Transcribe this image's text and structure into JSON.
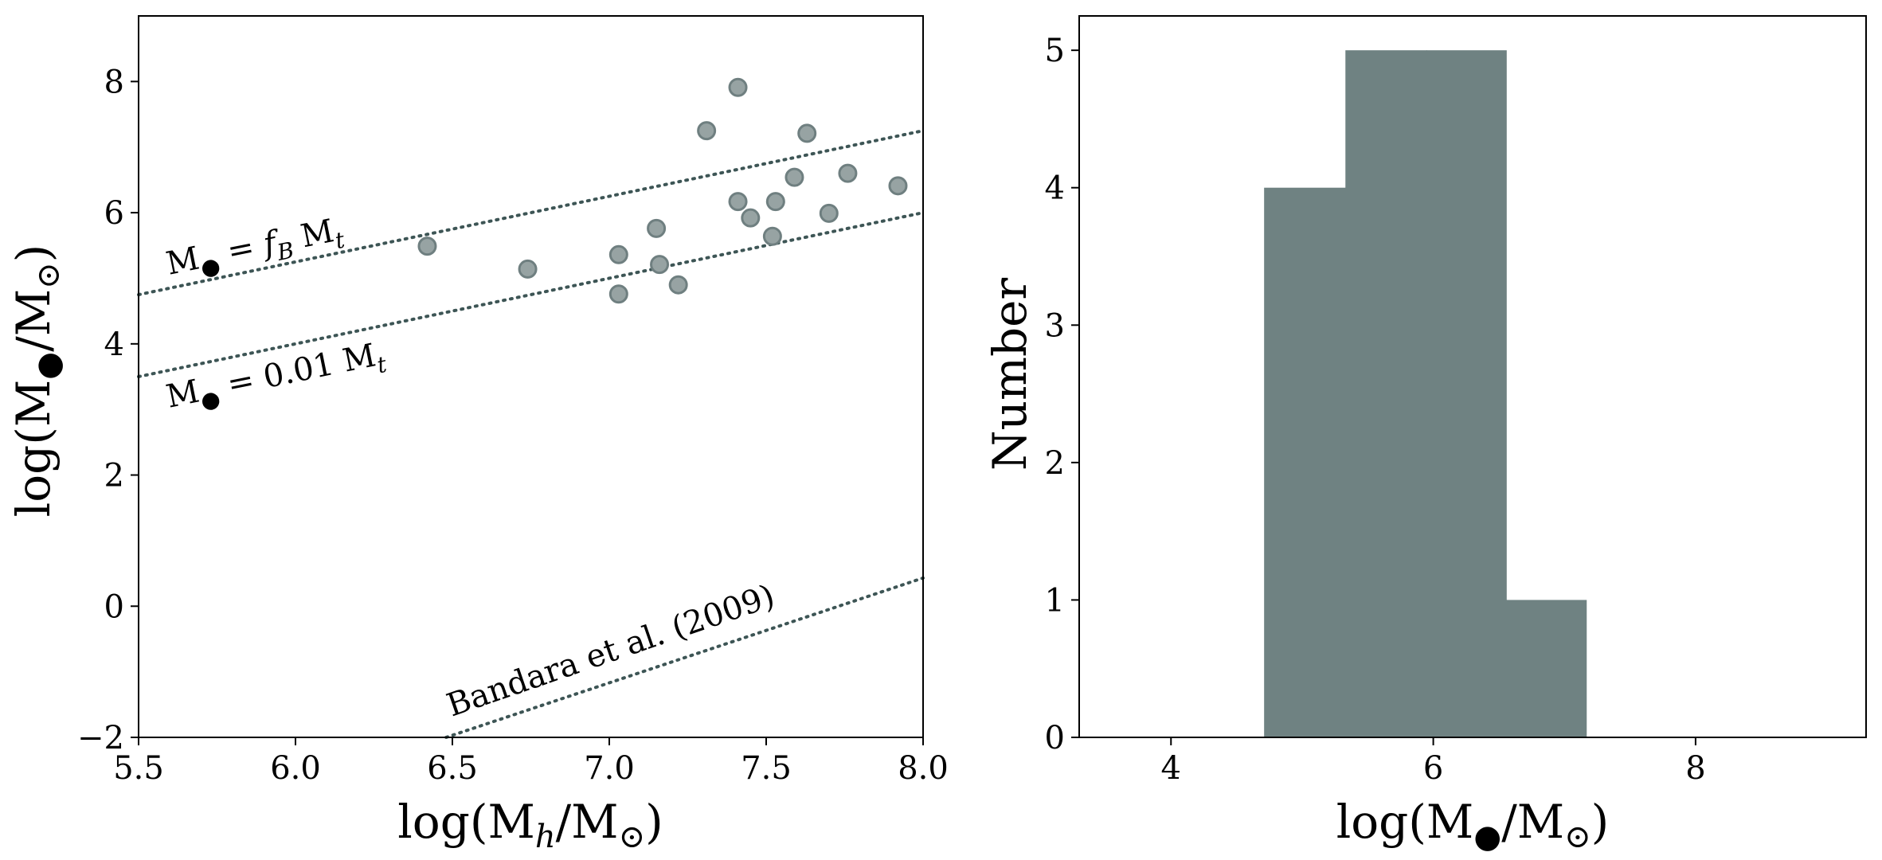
{
  "colors": {
    "marker_fill": "#97a3a3",
    "marker_edge": "#6f7f80",
    "reference_line": "#3d5555",
    "bar_fill": "#6f8282",
    "axes": "#000000"
  },
  "chart_data": [
    {
      "type": "scatter",
      "xlabel": "log(Mh/M⊙)",
      "ylabel": "log(M●/M⊙)",
      "xlim": [
        5.5,
        8.0
      ],
      "ylim": [
        -2,
        9
      ],
      "xticks": [
        5.5,
        6.0,
        6.5,
        7.0,
        7.5,
        8.0
      ],
      "xtick_labels": [
        "5.5",
        "6.0",
        "6.5",
        "7.0",
        "7.5",
        "8.0"
      ],
      "yticks": [
        -2,
        0,
        2,
        4,
        6,
        8
      ],
      "ytick_labels": [
        "−2",
        "0",
        "2",
        "4",
        "6",
        "8"
      ],
      "grid": false,
      "points": [
        {
          "x": 6.42,
          "y": 5.49
        },
        {
          "x": 6.74,
          "y": 5.14
        },
        {
          "x": 7.03,
          "y": 5.36
        },
        {
          "x": 7.03,
          "y": 4.76
        },
        {
          "x": 7.15,
          "y": 5.76
        },
        {
          "x": 7.16,
          "y": 5.21
        },
        {
          "x": 7.22,
          "y": 4.9
        },
        {
          "x": 7.31,
          "y": 7.25
        },
        {
          "x": 7.41,
          "y": 7.91
        },
        {
          "x": 7.41,
          "y": 6.17
        },
        {
          "x": 7.45,
          "y": 5.92
        },
        {
          "x": 7.52,
          "y": 5.64
        },
        {
          "x": 7.53,
          "y": 6.17
        },
        {
          "x": 7.59,
          "y": 6.54
        },
        {
          "x": 7.63,
          "y": 7.21
        },
        {
          "x": 7.7,
          "y": 5.99
        },
        {
          "x": 7.76,
          "y": 6.6
        },
        {
          "x": 7.92,
          "y": 6.41
        }
      ],
      "reference_lines": [
        {
          "label": "M● = fB Mt",
          "x": [
            5.5,
            8.0
          ],
          "y": [
            4.75,
            7.25
          ]
        },
        {
          "label": "M● = 0.01 Mt",
          "x": [
            5.5,
            8.0
          ],
          "y": [
            3.5,
            6.0
          ]
        },
        {
          "label": "Bandara et al. (2009)",
          "x": [
            6.48,
            8.0
          ],
          "y": [
            -2.0,
            0.43
          ]
        }
      ],
      "annotations": {
        "fb_line": {
          "prefix": "M",
          "subscript": "●",
          "mid": " = ",
          "italic": "f",
          "italic_sub": "B",
          "suffix": " M",
          "suffix_sub": "t"
        },
        "pct_line": {
          "prefix": "M",
          "subscript": "●",
          "mid": " = 0.01 M",
          "suffix_sub": "t"
        },
        "bandara": "Bandara et al. (2009)"
      },
      "axis_label_parts": {
        "x": {
          "pre": "log(M",
          "sub": "h",
          "post": "/M",
          "sub2": "⊙",
          "end": ")"
        },
        "y": {
          "pre": "log(M",
          "sub": "●",
          "post": "/M",
          "sub2": "⊙",
          "end": ")"
        }
      }
    },
    {
      "type": "bar",
      "subtype": "histogram",
      "xlabel": "log(M●/M⊙)",
      "ylabel": "Number",
      "xlim": [
        3.3,
        9.3
      ],
      "ylim": [
        0,
        5.25
      ],
      "xticks": [
        4,
        6,
        8
      ],
      "xtick_labels": [
        "4",
        "6",
        "8"
      ],
      "yticks": [
        0,
        1,
        2,
        3,
        4,
        5
      ],
      "ytick_labels": [
        "0",
        "1",
        "2",
        "3",
        "4",
        "5"
      ],
      "grid": false,
      "bins": [
        {
          "x0": 4.71,
          "x1": 5.33,
          "count": 4
        },
        {
          "x0": 5.33,
          "x1": 5.95,
          "count": 5
        },
        {
          "x0": 5.95,
          "x1": 6.56,
          "count": 5
        },
        {
          "x0": 6.56,
          "x1": 7.17,
          "count": 1
        }
      ],
      "axis_label_parts": {
        "x": {
          "pre": "log(M",
          "sub": "●",
          "post": "/M",
          "sub2": "⊙",
          "end": ")"
        }
      }
    }
  ]
}
